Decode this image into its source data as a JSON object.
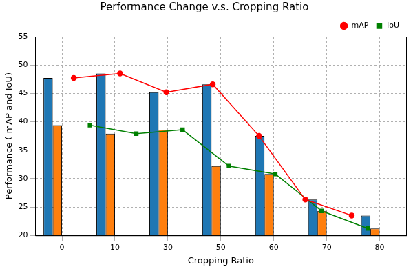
{
  "chart_data": {
    "type": "bar",
    "title": "Performance Change v.s. Cropping Ratio",
    "x_label": "Cropping Ratio",
    "y_label": "Performance ( mAP and IoU)",
    "categories": [
      "0",
      "10",
      "30",
      "50",
      "60",
      "70",
      "80"
    ],
    "series": [
      {
        "type": "bar",
        "color": "#1f77b4",
        "values": [
          47.7,
          48.5,
          45.2,
          46.6,
          37.5,
          26.3,
          23.5
        ]
      },
      {
        "type": "bar",
        "color": "#ff7f0e",
        "values": [
          39.4,
          37.9,
          38.6,
          32.2,
          30.8,
          24.3,
          21.2
        ]
      },
      {
        "name": "mAP",
        "type": "line",
        "color": "#ff0000",
        "marker": "circle",
        "values": [
          47.7,
          48.5,
          45.2,
          46.6,
          37.5,
          26.3,
          23.5
        ]
      },
      {
        "name": "IoU",
        "type": "line",
        "color": "#008000",
        "marker": "square",
        "values": [
          39.4,
          37.9,
          38.6,
          32.2,
          30.8,
          24.3,
          21.2
        ]
      }
    ],
    "ylim": [
      20,
      55
    ],
    "yticks": [
      20,
      25,
      30,
      35,
      40,
      45,
      50,
      55
    ],
    "grid": true,
    "legend": "upper right"
  }
}
